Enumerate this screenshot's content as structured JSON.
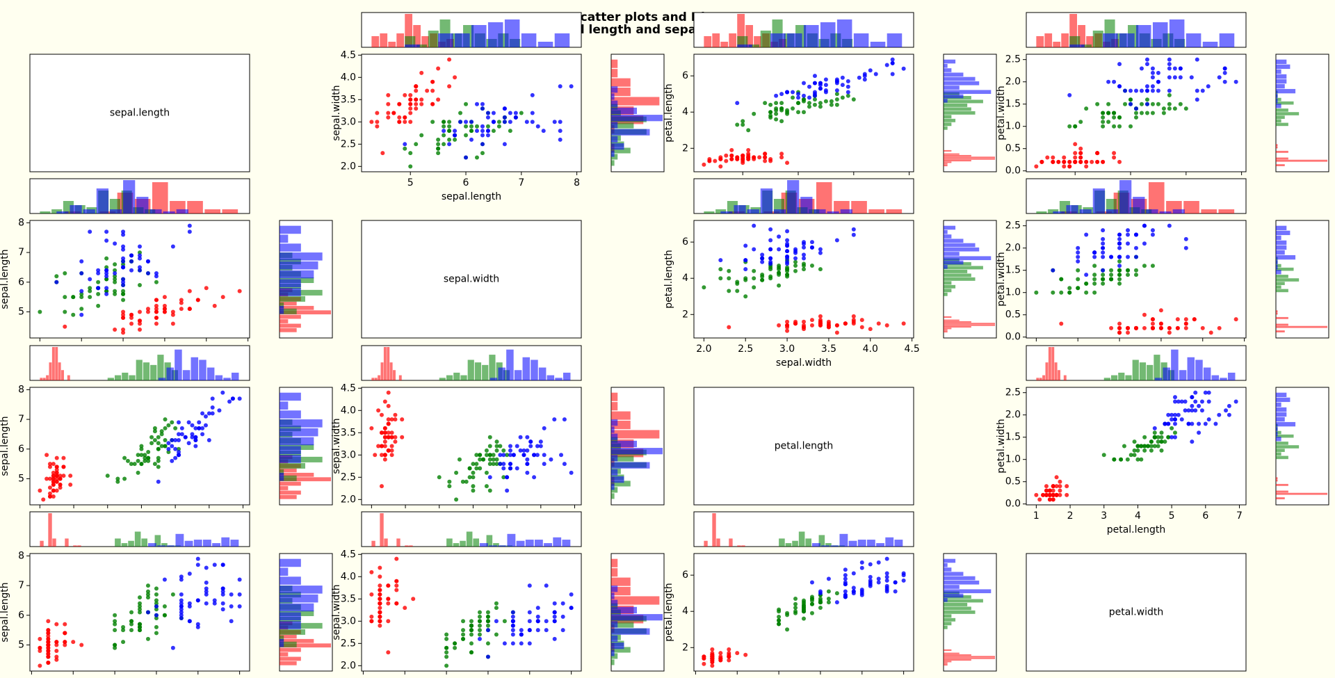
{
  "chart_data": {
    "type": "scatter_matrix",
    "title": [
      "Scatter plots and Histograms",
      "of sepal length and sepal length features"
    ],
    "features": [
      {
        "name": "sepal.length",
        "lim": [
          4.12,
          8.08
        ],
        "xticks": [
          5,
          6,
          7,
          8
        ],
        "yticks": [
          5,
          6,
          7,
          8
        ]
      },
      {
        "name": "sepal.width",
        "lim": [
          1.88,
          4.52
        ],
        "xticks": [
          {
            "value": 2,
            "label": "2.0"
          },
          2.5,
          {
            "value": 3,
            "label": "3.0"
          },
          3.5,
          {
            "value": 4,
            "label": "4.0"
          },
          4.5
        ],
        "yticks": [
          {
            "value": 2,
            "label": "2.0"
          },
          2.5,
          {
            "value": 3,
            "label": "3.0"
          },
          3.5,
          {
            "value": 4,
            "label": "4.0"
          },
          4.5
        ]
      },
      {
        "name": "petal.length",
        "lim": [
          0.705,
          7.195
        ],
        "xticks": [
          1,
          2,
          3,
          4,
          5,
          6,
          7
        ],
        "yticks": [
          2,
          4,
          6
        ]
      },
      {
        "name": "petal.width",
        "lim": [
          -0.02,
          2.62
        ],
        "xticks": [
          {
            "value": 0,
            "label": "0.0"
          },
          0.5,
          {
            "value": 1,
            "label": "1.0"
          },
          1.5,
          {
            "value": 2,
            "label": "2.0"
          },
          2.5
        ],
        "yticks": [
          {
            "value": 0,
            "label": "0.0"
          },
          0.5,
          {
            "value": 1,
            "label": "1.0"
          },
          1.5,
          {
            "value": 2,
            "label": "2.0"
          },
          2.5
        ]
      }
    ],
    "series": [
      {
        "color": "#ff0000",
        "values": [
          [
            5.1,
            3.5,
            1.4,
            0.2
          ],
          [
            4.9,
            3.0,
            1.4,
            0.2
          ],
          [
            4.7,
            3.2,
            1.3,
            0.2
          ],
          [
            4.6,
            3.1,
            1.5,
            0.2
          ],
          [
            5.0,
            3.6,
            1.4,
            0.2
          ],
          [
            5.4,
            3.9,
            1.7,
            0.4
          ],
          [
            4.6,
            3.4,
            1.4,
            0.3
          ],
          [
            5.0,
            3.4,
            1.5,
            0.2
          ],
          [
            4.4,
            2.9,
            1.4,
            0.2
          ],
          [
            4.9,
            3.1,
            1.5,
            0.1
          ],
          [
            5.4,
            3.7,
            1.5,
            0.2
          ],
          [
            4.8,
            3.4,
            1.6,
            0.2
          ],
          [
            4.8,
            3.0,
            1.4,
            0.1
          ],
          [
            4.3,
            3.0,
            1.1,
            0.1
          ],
          [
            5.8,
            4.0,
            1.2,
            0.2
          ],
          [
            5.7,
            4.4,
            1.5,
            0.4
          ],
          [
            5.4,
            3.9,
            1.3,
            0.4
          ],
          [
            5.1,
            3.5,
            1.4,
            0.3
          ],
          [
            5.7,
            3.8,
            1.7,
            0.3
          ],
          [
            5.1,
            3.8,
            1.5,
            0.3
          ],
          [
            5.4,
            3.4,
            1.7,
            0.2
          ],
          [
            5.1,
            3.7,
            1.5,
            0.4
          ],
          [
            4.6,
            3.6,
            1.0,
            0.2
          ],
          [
            5.1,
            3.3,
            1.7,
            0.5
          ],
          [
            4.8,
            3.4,
            1.9,
            0.2
          ],
          [
            5.0,
            3.0,
            1.6,
            0.2
          ],
          [
            5.0,
            3.4,
            1.6,
            0.4
          ],
          [
            5.2,
            3.5,
            1.5,
            0.2
          ],
          [
            5.2,
            3.4,
            1.4,
            0.2
          ],
          [
            4.7,
            3.2,
            1.6,
            0.2
          ],
          [
            4.8,
            3.1,
            1.6,
            0.2
          ],
          [
            5.4,
            3.4,
            1.5,
            0.4
          ],
          [
            5.2,
            4.1,
            1.5,
            0.1
          ],
          [
            5.5,
            4.2,
            1.4,
            0.2
          ],
          [
            4.9,
            3.1,
            1.5,
            0.2
          ],
          [
            5.0,
            3.2,
            1.2,
            0.2
          ],
          [
            5.5,
            3.5,
            1.3,
            0.2
          ],
          [
            4.9,
            3.6,
            1.4,
            0.1
          ],
          [
            4.4,
            3.0,
            1.3,
            0.2
          ],
          [
            5.1,
            3.4,
            1.5,
            0.2
          ],
          [
            5.0,
            3.5,
            1.3,
            0.3
          ],
          [
            4.5,
            2.3,
            1.3,
            0.3
          ],
          [
            4.4,
            3.2,
            1.3,
            0.2
          ],
          [
            5.0,
            3.5,
            1.6,
            0.6
          ],
          [
            5.1,
            3.8,
            1.9,
            0.4
          ],
          [
            4.8,
            3.0,
            1.4,
            0.3
          ],
          [
            5.1,
            3.8,
            1.6,
            0.2
          ],
          [
            4.6,
            3.2,
            1.4,
            0.2
          ],
          [
            5.3,
            3.7,
            1.5,
            0.2
          ],
          [
            5.0,
            3.3,
            1.4,
            0.2
          ]
        ]
      },
      {
        "color": "#008000",
        "values": [
          [
            7.0,
            3.2,
            4.7,
            1.4
          ],
          [
            6.4,
            3.2,
            4.5,
            1.5
          ],
          [
            6.9,
            3.1,
            4.9,
            1.5
          ],
          [
            5.5,
            2.3,
            4.0,
            1.3
          ],
          [
            6.5,
            2.8,
            4.6,
            1.5
          ],
          [
            5.7,
            2.8,
            4.5,
            1.3
          ],
          [
            6.3,
            3.3,
            4.7,
            1.6
          ],
          [
            4.9,
            2.4,
            3.3,
            1.0
          ],
          [
            6.6,
            2.9,
            4.6,
            1.3
          ],
          [
            5.2,
            2.7,
            3.9,
            1.4
          ],
          [
            5.0,
            2.0,
            3.5,
            1.0
          ],
          [
            5.9,
            3.0,
            4.2,
            1.5
          ],
          [
            6.0,
            2.2,
            4.0,
            1.0
          ],
          [
            6.1,
            2.9,
            4.7,
            1.4
          ],
          [
            5.6,
            2.9,
            3.6,
            1.3
          ],
          [
            6.7,
            3.1,
            4.4,
            1.4
          ],
          [
            5.6,
            3.0,
            4.5,
            1.5
          ],
          [
            5.8,
            2.7,
            4.1,
            1.0
          ],
          [
            6.2,
            2.2,
            4.5,
            1.5
          ],
          [
            5.6,
            2.5,
            3.9,
            1.1
          ],
          [
            5.9,
            3.2,
            4.8,
            1.8
          ],
          [
            6.1,
            2.8,
            4.0,
            1.3
          ],
          [
            6.3,
            2.5,
            4.9,
            1.5
          ],
          [
            6.1,
            2.8,
            4.7,
            1.2
          ],
          [
            6.4,
            2.9,
            4.3,
            1.3
          ],
          [
            6.6,
            3.0,
            4.4,
            1.4
          ],
          [
            6.8,
            2.8,
            4.8,
            1.4
          ],
          [
            6.7,
            3.0,
            5.0,
            1.7
          ],
          [
            6.0,
            2.9,
            4.5,
            1.5
          ],
          [
            5.7,
            2.6,
            3.5,
            1.0
          ],
          [
            5.5,
            2.4,
            3.8,
            1.1
          ],
          [
            5.5,
            2.4,
            3.7,
            1.0
          ],
          [
            5.8,
            2.7,
            3.9,
            1.2
          ],
          [
            6.0,
            2.7,
            5.1,
            1.6
          ],
          [
            5.4,
            3.0,
            4.5,
            1.5
          ],
          [
            6.0,
            3.4,
            4.5,
            1.6
          ],
          [
            6.7,
            3.1,
            4.7,
            1.5
          ],
          [
            6.3,
            2.3,
            4.4,
            1.3
          ],
          [
            5.6,
            3.0,
            4.1,
            1.3
          ],
          [
            5.5,
            2.5,
            4.0,
            1.3
          ],
          [
            5.5,
            2.6,
            4.4,
            1.2
          ],
          [
            6.1,
            3.0,
            4.6,
            1.4
          ],
          [
            5.8,
            2.6,
            4.0,
            1.2
          ],
          [
            5.0,
            2.3,
            3.3,
            1.0
          ],
          [
            5.6,
            2.7,
            4.2,
            1.3
          ],
          [
            5.7,
            3.0,
            4.2,
            1.2
          ],
          [
            5.7,
            2.9,
            4.2,
            1.3
          ],
          [
            6.2,
            2.9,
            4.3,
            1.3
          ],
          [
            5.1,
            2.5,
            3.0,
            1.1
          ],
          [
            5.7,
            2.8,
            4.1,
            1.3
          ]
        ]
      },
      {
        "color": "#0000ff",
        "values": [
          [
            6.3,
            3.3,
            6.0,
            2.5
          ],
          [
            5.8,
            2.7,
            5.1,
            1.9
          ],
          [
            7.1,
            3.0,
            5.9,
            2.1
          ],
          [
            6.3,
            2.9,
            5.6,
            1.8
          ],
          [
            6.5,
            3.0,
            5.8,
            2.2
          ],
          [
            7.6,
            3.0,
            6.6,
            2.1
          ],
          [
            4.9,
            2.5,
            4.5,
            1.7
          ],
          [
            7.3,
            2.9,
            6.3,
            1.8
          ],
          [
            6.7,
            2.5,
            5.8,
            1.8
          ],
          [
            7.2,
            3.6,
            6.1,
            2.5
          ],
          [
            6.5,
            3.2,
            5.1,
            2.0
          ],
          [
            6.4,
            2.7,
            5.3,
            1.9
          ],
          [
            6.8,
            3.0,
            5.5,
            2.1
          ],
          [
            5.7,
            2.5,
            5.0,
            2.0
          ],
          [
            5.8,
            2.8,
            5.1,
            2.4
          ],
          [
            6.4,
            3.2,
            5.3,
            2.3
          ],
          [
            6.5,
            3.0,
            5.5,
            1.8
          ],
          [
            7.7,
            3.8,
            6.7,
            2.2
          ],
          [
            7.7,
            2.6,
            6.9,
            2.3
          ],
          [
            6.0,
            2.2,
            5.0,
            1.5
          ],
          [
            6.9,
            3.2,
            5.7,
            2.3
          ],
          [
            5.6,
            2.8,
            4.9,
            2.0
          ],
          [
            7.7,
            2.8,
            6.7,
            2.0
          ],
          [
            6.3,
            2.7,
            4.9,
            1.8
          ],
          [
            6.7,
            3.3,
            5.7,
            2.1
          ],
          [
            7.2,
            3.2,
            6.0,
            1.8
          ],
          [
            6.2,
            2.8,
            4.8,
            1.8
          ],
          [
            6.1,
            3.0,
            4.9,
            1.8
          ],
          [
            6.4,
            2.8,
            5.6,
            2.1
          ],
          [
            7.2,
            3.0,
            5.8,
            1.6
          ],
          [
            7.4,
            2.8,
            6.1,
            1.9
          ],
          [
            7.9,
            3.8,
            6.4,
            2.0
          ],
          [
            6.4,
            2.8,
            5.6,
            2.2
          ],
          [
            6.3,
            2.8,
            5.1,
            1.5
          ],
          [
            6.1,
            2.6,
            5.6,
            1.4
          ],
          [
            7.7,
            3.0,
            6.1,
            2.3
          ],
          [
            6.3,
            3.4,
            5.6,
            2.4
          ],
          [
            6.4,
            3.1,
            5.5,
            1.8
          ],
          [
            6.0,
            3.0,
            4.8,
            1.8
          ],
          [
            6.9,
            3.1,
            5.4,
            2.1
          ],
          [
            6.7,
            3.1,
            5.6,
            2.4
          ],
          [
            6.9,
            3.1,
            5.1,
            2.3
          ],
          [
            5.8,
            2.7,
            5.1,
            1.9
          ],
          [
            6.8,
            3.2,
            5.9,
            2.3
          ],
          [
            6.7,
            3.3,
            5.7,
            2.5
          ],
          [
            6.7,
            3.0,
            5.2,
            2.3
          ],
          [
            6.3,
            2.5,
            5.0,
            1.9
          ],
          [
            6.5,
            3.0,
            5.2,
            2.0
          ],
          [
            6.2,
            3.4,
            5.4,
            2.3
          ],
          [
            5.9,
            3.0,
            5.1,
            1.8
          ]
        ]
      }
    ]
  }
}
